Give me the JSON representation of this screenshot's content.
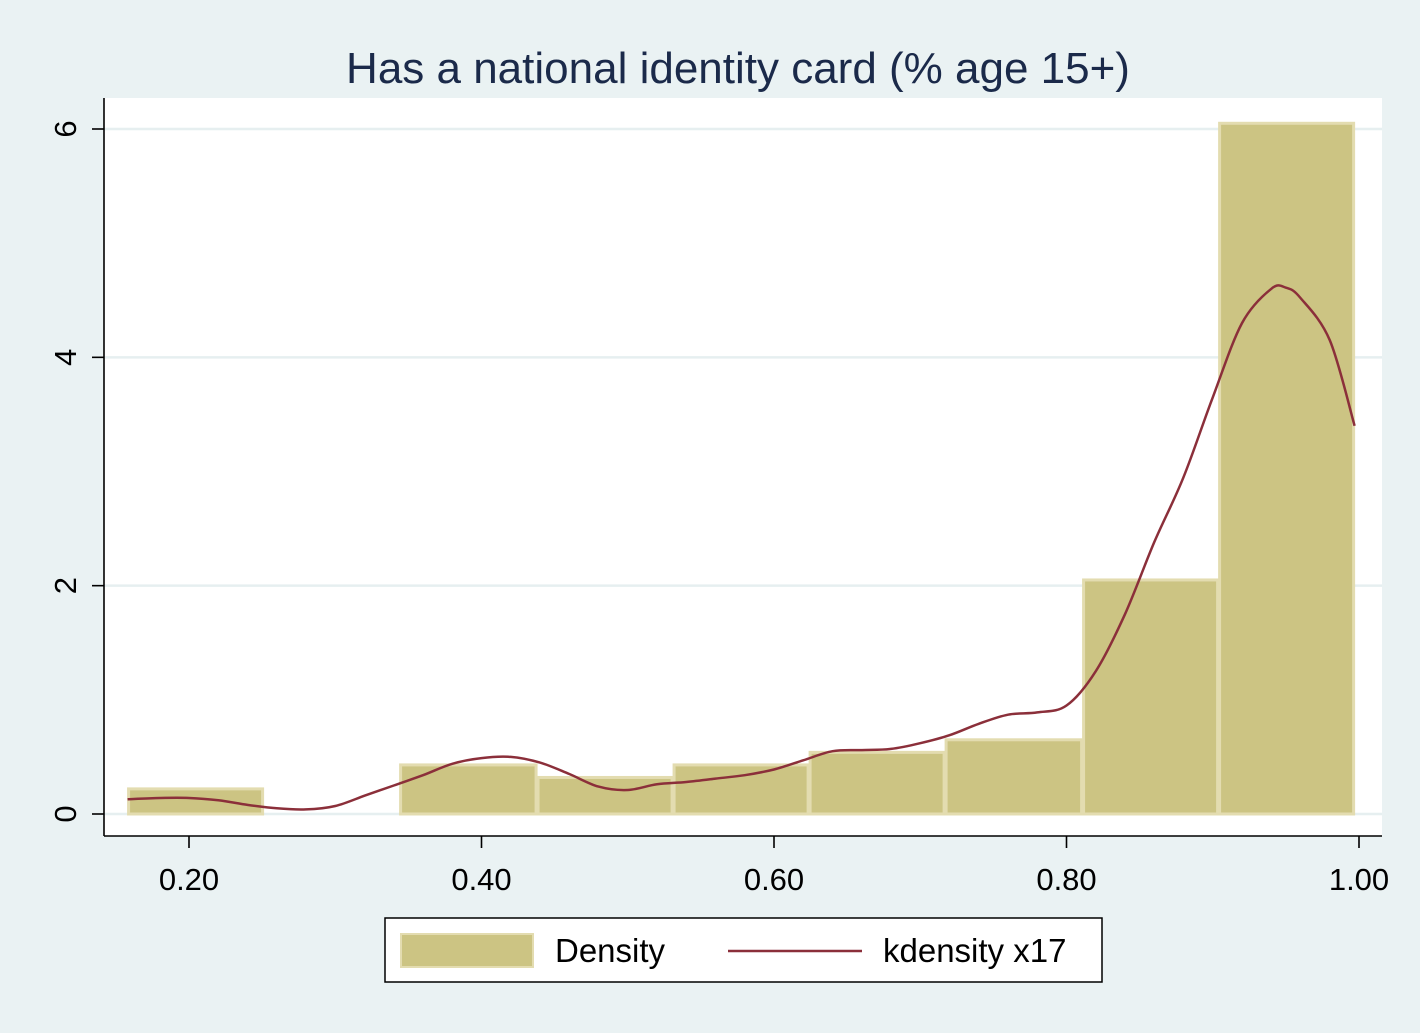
{
  "chart_data": {
    "type": "bar",
    "title": "Has a national identity card (% age 15+)",
    "xlabel": "",
    "ylabel": "",
    "xlim": [
      0.2,
      1.0
    ],
    "ylim": [
      0,
      6
    ],
    "x_ticks": [
      {
        "value": 0.2,
        "label": "0.20"
      },
      {
        "value": 0.4,
        "label": "0.40"
      },
      {
        "value": 0.6,
        "label": "0.60"
      },
      {
        "value": 0.8,
        "label": "0.80"
      },
      {
        "value": 1.0,
        "label": "1.00"
      }
    ],
    "y_ticks": [
      {
        "value": 0,
        "label": "0"
      },
      {
        "value": 2,
        "label": "2"
      },
      {
        "value": 4,
        "label": "4"
      },
      {
        "value": 6,
        "label": "6"
      }
    ],
    "grid": true,
    "legend_position": "bottom",
    "colors": {
      "bar": "#ccc483",
      "bar_edge": "#e3dcb0",
      "line": "#8b2f3a",
      "grid": "#e6eff0",
      "background": "#eaf2f3",
      "plot": "#ffffff"
    },
    "series": [
      {
        "name": "Density",
        "type": "histogram",
        "bins": [
          {
            "x0": 0.158,
            "x1": 0.251,
            "value": 0.22
          },
          {
            "x0": 0.251,
            "x1": 0.344,
            "value": 0.0
          },
          {
            "x0": 0.344,
            "x1": 0.438,
            "value": 0.43
          },
          {
            "x0": 0.438,
            "x1": 0.531,
            "value": 0.32
          },
          {
            "x0": 0.531,
            "x1": 0.624,
            "value": 0.43
          },
          {
            "x0": 0.624,
            "x1": 0.717,
            "value": 0.54
          },
          {
            "x0": 0.717,
            "x1": 0.811,
            "value": 0.65
          },
          {
            "x0": 0.811,
            "x1": 0.904,
            "value": 2.05
          },
          {
            "x0": 0.904,
            "x1": 0.997,
            "value": 6.05
          }
        ]
      },
      {
        "name": "kdensity x17",
        "type": "line",
        "x": [
          0.158,
          0.18,
          0.2,
          0.22,
          0.24,
          0.26,
          0.28,
          0.3,
          0.32,
          0.34,
          0.36,
          0.38,
          0.4,
          0.42,
          0.44,
          0.46,
          0.48,
          0.5,
          0.52,
          0.54,
          0.56,
          0.58,
          0.6,
          0.62,
          0.64,
          0.66,
          0.68,
          0.7,
          0.72,
          0.74,
          0.76,
          0.78,
          0.8,
          0.82,
          0.84,
          0.86,
          0.88,
          0.9,
          0.92,
          0.94,
          0.95,
          0.96,
          0.98,
          0.997
        ],
        "y": [
          0.13,
          0.14,
          0.14,
          0.12,
          0.08,
          0.05,
          0.04,
          0.07,
          0.16,
          0.25,
          0.34,
          0.44,
          0.49,
          0.5,
          0.45,
          0.35,
          0.24,
          0.21,
          0.26,
          0.28,
          0.31,
          0.34,
          0.39,
          0.47,
          0.55,
          0.56,
          0.57,
          0.62,
          0.69,
          0.79,
          0.87,
          0.89,
          0.95,
          1.25,
          1.75,
          2.38,
          2.95,
          3.65,
          4.3,
          4.6,
          4.61,
          4.52,
          4.15,
          3.4
        ]
      }
    ]
  }
}
